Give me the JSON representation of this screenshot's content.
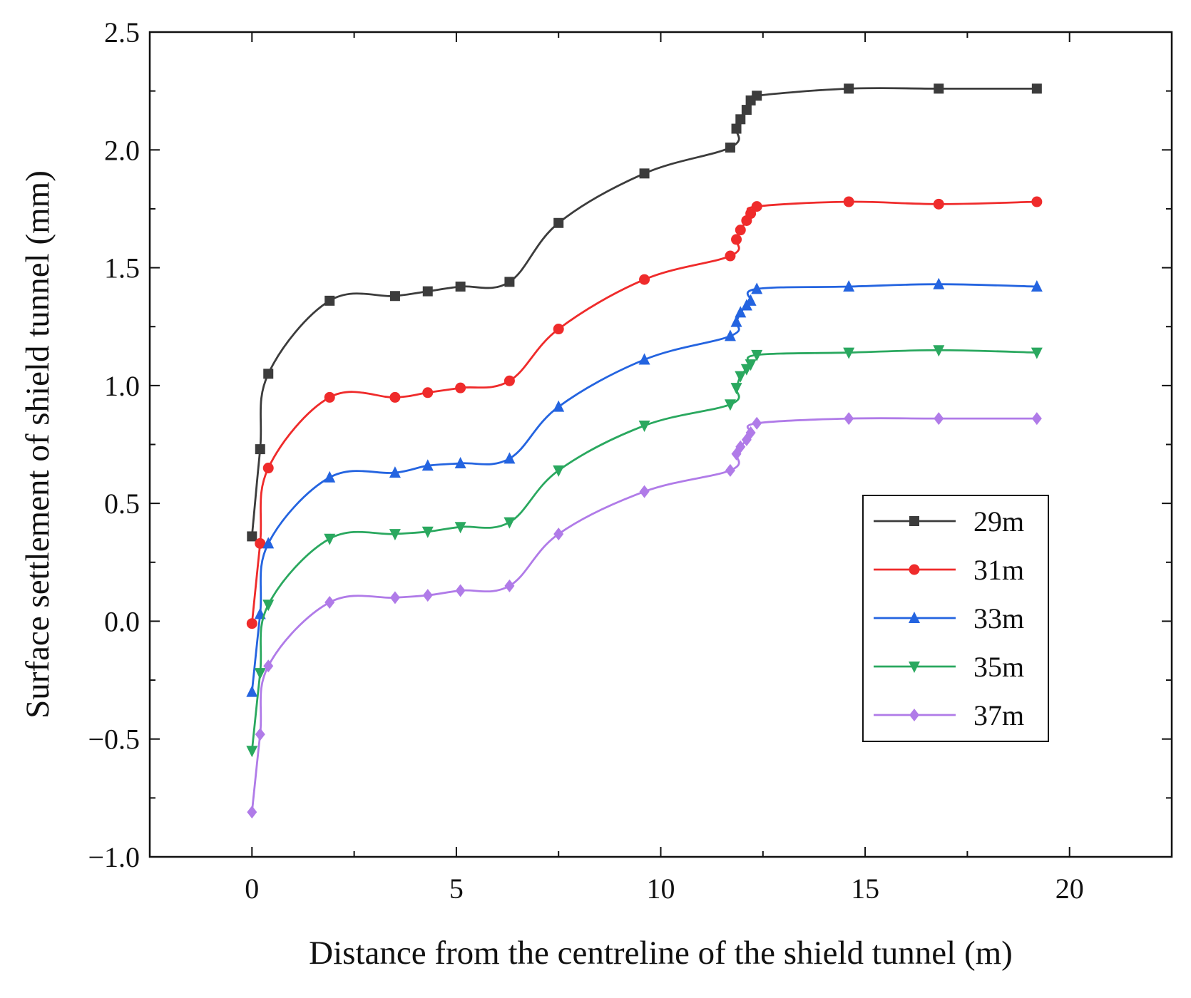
{
  "chart_data": {
    "type": "line",
    "title": "",
    "xlabel": "Distance from the centreline of the shield tunnel (m)",
    "ylabel": "Surface settlement of shield tunnel (mm)",
    "xlim": [
      -2.5,
      22.5
    ],
    "ylim": [
      -1.0,
      2.5
    ],
    "xticks": [
      0,
      5,
      10,
      15,
      20
    ],
    "yticks": [
      -1.0,
      -0.5,
      0.0,
      0.5,
      1.0,
      1.5,
      2.0,
      2.5
    ],
    "xtick_labels": [
      "0",
      "5",
      "10",
      "15",
      "20"
    ],
    "ytick_labels": [
      "−1.0",
      "−0.5",
      "0.0",
      "0.5",
      "1.0",
      "1.5",
      "2.0",
      "2.5"
    ],
    "legend_position": "lower-right",
    "series": [
      {
        "name": "29m",
        "color": "#3c3c3c",
        "marker": "square",
        "x": [
          0,
          0.2,
          0.4,
          1.9,
          3.5,
          4.3,
          5.1,
          6.3,
          7.5,
          9.6,
          11.7,
          11.85,
          11.95,
          12.1,
          12.2,
          12.35,
          14.6,
          16.8,
          19.2
        ],
        "y": [
          0.36,
          0.73,
          1.05,
          1.36,
          1.38,
          1.4,
          1.42,
          1.44,
          1.69,
          1.9,
          2.01,
          2.09,
          2.13,
          2.17,
          2.21,
          2.23,
          2.26,
          2.26,
          2.26
        ]
      },
      {
        "name": "31m",
        "color": "#ef2b2b",
        "marker": "circle",
        "x": [
          0,
          0.2,
          0.4,
          1.9,
          3.5,
          4.3,
          5.1,
          6.3,
          7.5,
          9.6,
          11.7,
          11.85,
          11.95,
          12.1,
          12.2,
          12.35,
          14.6,
          16.8,
          19.2
        ],
        "y": [
          -0.01,
          0.33,
          0.65,
          0.95,
          0.95,
          0.97,
          0.99,
          1.02,
          1.24,
          1.45,
          1.55,
          1.62,
          1.66,
          1.7,
          1.73,
          1.76,
          1.78,
          1.77,
          1.78
        ]
      },
      {
        "name": "33m",
        "color": "#2464e0",
        "marker": "triangle-up",
        "x": [
          0,
          0.2,
          0.4,
          1.9,
          3.5,
          4.3,
          5.1,
          6.3,
          7.5,
          9.6,
          11.7,
          11.85,
          11.95,
          12.1,
          12.2,
          12.35,
          14.6,
          16.8,
          19.2
        ],
        "y": [
          -0.3,
          0.03,
          0.33,
          0.61,
          0.63,
          0.66,
          0.67,
          0.69,
          0.91,
          1.11,
          1.21,
          1.27,
          1.31,
          1.34,
          1.36,
          1.41,
          1.42,
          1.43,
          1.42
        ]
      },
      {
        "name": "35m",
        "color": "#2aa85f",
        "marker": "triangle-down",
        "x": [
          0,
          0.2,
          0.4,
          1.9,
          3.5,
          4.3,
          5.1,
          6.3,
          7.5,
          9.6,
          11.7,
          11.85,
          11.95,
          12.1,
          12.2,
          12.35,
          14.6,
          16.8,
          19.2
        ],
        "y": [
          -0.55,
          -0.22,
          0.07,
          0.35,
          0.37,
          0.38,
          0.4,
          0.42,
          0.64,
          0.83,
          0.92,
          0.99,
          1.04,
          1.07,
          1.09,
          1.13,
          1.14,
          1.15,
          1.14
        ]
      },
      {
        "name": "37m",
        "color": "#b07be8",
        "marker": "diamond",
        "x": [
          0,
          0.2,
          0.4,
          1.9,
          3.5,
          4.3,
          5.1,
          6.3,
          7.5,
          9.6,
          11.7,
          11.85,
          11.95,
          12.1,
          12.2,
          12.35,
          14.6,
          16.8,
          19.2
        ],
        "y": [
          -0.81,
          -0.48,
          -0.19,
          0.08,
          0.1,
          0.11,
          0.13,
          0.15,
          0.37,
          0.55,
          0.64,
          0.71,
          0.74,
          0.77,
          0.8,
          0.84,
          0.86,
          0.86,
          0.86
        ]
      }
    ]
  }
}
